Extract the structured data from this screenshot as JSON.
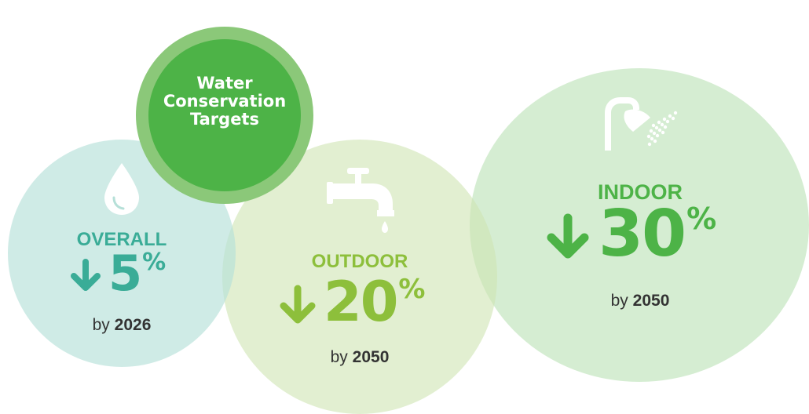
{
  "title": {
    "line1": "Water",
    "line2": "Conservation",
    "line3": "Targets"
  },
  "targets": [
    {
      "label": "OVERALL",
      "percent": "5",
      "symbol": "%",
      "by_word": "by",
      "year": "2026",
      "icon": "water-drop-icon",
      "color": "#3aac97"
    },
    {
      "label": "OUTDOOR",
      "percent": "20",
      "symbol": "%",
      "by_word": "by",
      "year": "2050",
      "icon": "faucet-icon",
      "color": "#8dbf3b"
    },
    {
      "label": "INDOOR",
      "percent": "30",
      "symbol": "%",
      "by_word": "by",
      "year": "2050",
      "icon": "shower-icon",
      "color": "#4db347"
    }
  ]
}
